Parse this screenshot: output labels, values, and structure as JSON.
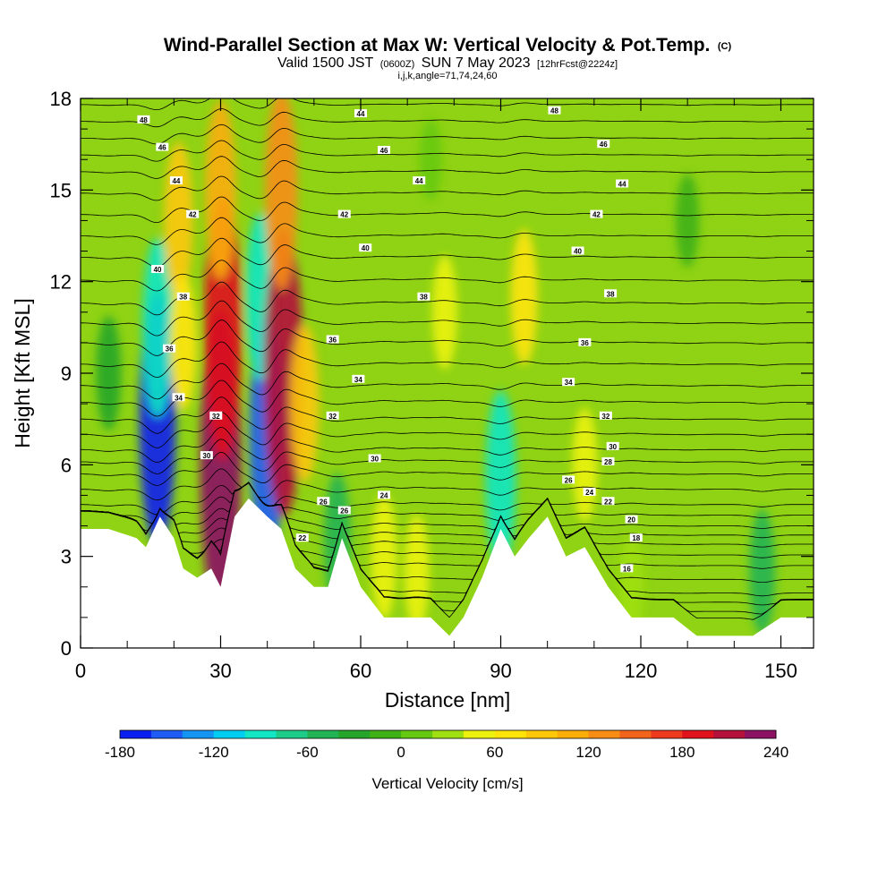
{
  "title": {
    "main": "Wind-Parallel Section at Max W: Vertical Velocity & Pot.Temp.",
    "main_suffix": "(C)",
    "valid_prefix": "Valid 1500 JST",
    "valid_utc": "(0600Z)",
    "valid_date": "SUN 7 May 2023",
    "forecast": "[12hrFcst@2224z]",
    "indices": "i,j,k,angle=71,74,24,60"
  },
  "chart_data": {
    "type": "heatmap",
    "xlabel": "Distance [nm]",
    "ylabel": "Height [Kft MSL]",
    "xlim": [
      0,
      157
    ],
    "ylim": [
      0,
      18
    ],
    "xticks": [
      0,
      30,
      60,
      90,
      120,
      150
    ],
    "yticks": [
      0,
      3,
      6,
      9,
      12,
      15,
      18
    ],
    "terrain_height_kft": {
      "x": [
        0,
        6,
        12,
        14,
        17,
        20,
        22,
        25,
        28,
        30,
        33,
        36,
        40,
        43,
        46,
        50,
        53,
        56,
        60,
        65,
        70,
        75,
        79,
        82,
        86,
        90,
        93,
        96,
        100,
        104,
        108,
        113,
        118,
        122,
        127,
        132,
        138,
        144,
        150,
        157
      ],
      "y": [
        3.9,
        3.9,
        3.6,
        3.3,
        4.3,
        3.6,
        2.6,
        2.3,
        2.6,
        2.0,
        4.3,
        4.9,
        4.3,
        3.9,
        2.6,
        2.0,
        2.0,
        3.6,
        2.0,
        1.0,
        1.0,
        1.0,
        0.4,
        1.0,
        2.3,
        3.9,
        3.0,
        3.6,
        4.3,
        3.0,
        3.3,
        2.0,
        1.0,
        1.0,
        1.0,
        0.4,
        0.4,
        0.4,
        1.0,
        1.0
      ]
    },
    "vertical_velocity": {
      "label": "Vertical Velocity [cm/s]",
      "cells": [
        {
          "x": 16.5,
          "y": 7.5,
          "value": -170
        },
        {
          "x": 16.5,
          "y": 10.5,
          "value": -100
        },
        {
          "x": 21.0,
          "y": 14.0,
          "value": 80
        },
        {
          "x": 22.0,
          "y": 10.0,
          "value": 60
        },
        {
          "x": 30.0,
          "y": 6.0,
          "value": 220
        },
        {
          "x": 30.5,
          "y": 10.5,
          "value": 180
        },
        {
          "x": 30.0,
          "y": 15.0,
          "value": 100
        },
        {
          "x": 40.0,
          "y": 7.0,
          "value": -160
        },
        {
          "x": 38.5,
          "y": 11.5,
          "value": -90
        },
        {
          "x": 43.5,
          "y": 9.0,
          "value": 200
        },
        {
          "x": 43.0,
          "y": 15.0,
          "value": 120
        },
        {
          "x": 48.0,
          "y": 8.0,
          "value": 80
        },
        {
          "x": 55.0,
          "y": 3.5,
          "value": -60
        },
        {
          "x": 65.0,
          "y": 3.0,
          "value": 50
        },
        {
          "x": 72.0,
          "y": 2.5,
          "value": 40
        },
        {
          "x": 90.0,
          "y": 5.5,
          "value": -100
        },
        {
          "x": 95.0,
          "y": 11.5,
          "value": 60
        },
        {
          "x": 78.0,
          "y": 11.0,
          "value": 40
        },
        {
          "x": 108.0,
          "y": 6.0,
          "value": 40
        },
        {
          "x": 118.0,
          "y": 2.0,
          "value": 30
        },
        {
          "x": 146.0,
          "y": 2.5,
          "value": -50
        },
        {
          "x": 6.0,
          "y": 9.0,
          "value": -40
        },
        {
          "x": 130.0,
          "y": 14.0,
          "value": -20
        },
        {
          "x": 75.0,
          "y": 16.0,
          "value": 10
        }
      ]
    },
    "colorbar": {
      "ticks": [
        "-180",
        "-120",
        "-60",
        "0",
        "60",
        "120",
        "180",
        "240"
      ],
      "bins": [
        -180,
        -160,
        -140,
        -120,
        -100,
        -80,
        -60,
        -40,
        -20,
        0,
        20,
        40,
        60,
        80,
        100,
        120,
        140,
        160,
        180,
        200,
        220,
        240
      ],
      "colors": [
        "#0a20f0",
        "#1e5cf5",
        "#1495f2",
        "#00cdf2",
        "#12e6c4",
        "#1ecc8a",
        "#22b453",
        "#25a52a",
        "#3fb016",
        "#66c911",
        "#9ee011",
        "#ecf20e",
        "#ffe40a",
        "#fdc80a",
        "#fbad0a",
        "#f78d14",
        "#f2641c",
        "#ed3a1e",
        "#e0121c",
        "#b4123a",
        "#8c1264"
      ]
    },
    "potential_temperature": {
      "label": "Pot.Temp. (C)",
      "contour_interval_c": 1,
      "levels_c": [
        16,
        18,
        20,
        22,
        24,
        26,
        28,
        30,
        32,
        34,
        36,
        38,
        40,
        42,
        44,
        46,
        48
      ],
      "height_kft_reference": [
        1.2,
        1.8,
        2.7,
        3.4,
        4.0,
        4.7,
        5.7,
        6.5,
        7.5,
        8.6,
        10.0,
        11.3,
        12.8,
        14.2,
        15.6,
        16.7,
        17.8
      ],
      "labels": [
        {
          "x": 13.5,
          "y": 17.3,
          "text": "48"
        },
        {
          "x": 17.5,
          "y": 16.4,
          "text": "46"
        },
        {
          "x": 20.5,
          "y": 15.3,
          "text": "44"
        },
        {
          "x": 24.0,
          "y": 14.2,
          "text": "42"
        },
        {
          "x": 16.5,
          "y": 12.4,
          "text": "40"
        },
        {
          "x": 22.0,
          "y": 11.5,
          "text": "38"
        },
        {
          "x": 19.0,
          "y": 9.8,
          "text": "36"
        },
        {
          "x": 21.0,
          "y": 8.2,
          "text": "34"
        },
        {
          "x": 29.0,
          "y": 7.6,
          "text": "32"
        },
        {
          "x": 27.0,
          "y": 6.3,
          "text": "30"
        },
        {
          "x": 60.0,
          "y": 17.5,
          "text": "44"
        },
        {
          "x": 65.0,
          "y": 16.3,
          "text": "46"
        },
        {
          "x": 72.5,
          "y": 15.3,
          "text": "44"
        },
        {
          "x": 56.5,
          "y": 14.2,
          "text": "42"
        },
        {
          "x": 61.0,
          "y": 13.1,
          "text": "40"
        },
        {
          "x": 73.5,
          "y": 11.5,
          "text": "38"
        },
        {
          "x": 54.0,
          "y": 10.1,
          "text": "36"
        },
        {
          "x": 59.5,
          "y": 8.8,
          "text": "34"
        },
        {
          "x": 54.0,
          "y": 7.6,
          "text": "32"
        },
        {
          "x": 63.0,
          "y": 6.2,
          "text": "30"
        },
        {
          "x": 65.0,
          "y": 5.0,
          "text": "24"
        },
        {
          "x": 52.0,
          "y": 4.8,
          "text": "26"
        },
        {
          "x": 56.5,
          "y": 4.5,
          "text": "26"
        },
        {
          "x": 47.5,
          "y": 3.6,
          "text": "22"
        },
        {
          "x": 101.5,
          "y": 17.6,
          "text": "48"
        },
        {
          "x": 112.0,
          "y": 16.5,
          "text": "46"
        },
        {
          "x": 116.0,
          "y": 15.2,
          "text": "44"
        },
        {
          "x": 110.5,
          "y": 14.2,
          "text": "42"
        },
        {
          "x": 106.5,
          "y": 13.0,
          "text": "40"
        },
        {
          "x": 113.5,
          "y": 11.6,
          "text": "38"
        },
        {
          "x": 108.0,
          "y": 10.0,
          "text": "36"
        },
        {
          "x": 104.5,
          "y": 8.7,
          "text": "34"
        },
        {
          "x": 112.5,
          "y": 7.6,
          "text": "32"
        },
        {
          "x": 114.0,
          "y": 6.6,
          "text": "30"
        },
        {
          "x": 113.0,
          "y": 6.1,
          "text": "28"
        },
        {
          "x": 104.5,
          "y": 5.5,
          "text": "26"
        },
        {
          "x": 109.0,
          "y": 5.1,
          "text": "24"
        },
        {
          "x": 113.0,
          "y": 4.8,
          "text": "22"
        },
        {
          "x": 118.0,
          "y": 4.2,
          "text": "20"
        },
        {
          "x": 119.0,
          "y": 3.6,
          "text": "18"
        },
        {
          "x": 117.0,
          "y": 2.6,
          "text": "16"
        }
      ]
    }
  }
}
